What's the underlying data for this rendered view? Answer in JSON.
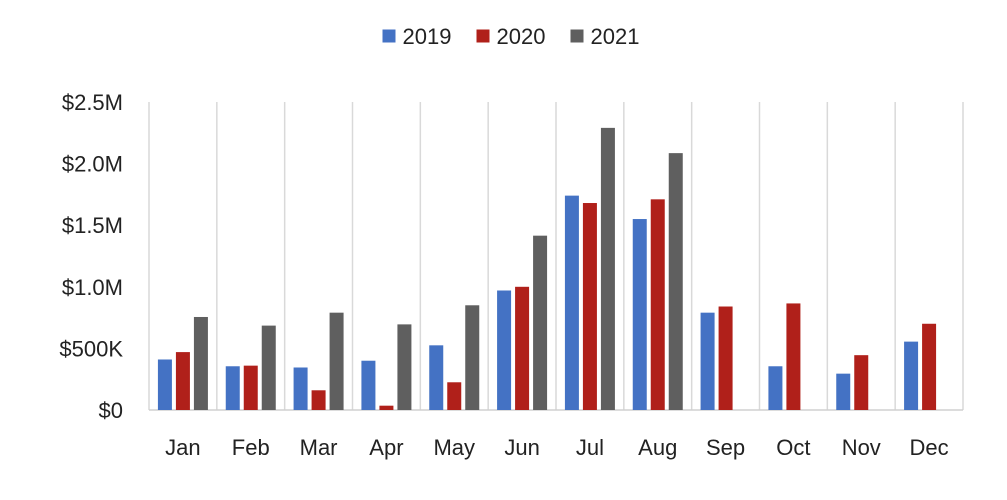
{
  "chart_data": {
    "type": "bar",
    "categories": [
      "Jan",
      "Feb",
      "Mar",
      "Apr",
      "May",
      "Jun",
      "Jul",
      "Aug",
      "Sep",
      "Oct",
      "Nov",
      "Dec"
    ],
    "series": [
      {
        "name": "2019",
        "color": "#4472C4",
        "values": [
          410000,
          355000,
          345000,
          400000,
          525000,
          970000,
          1740000,
          1550000,
          790000,
          355000,
          295000,
          555000
        ]
      },
      {
        "name": "2020",
        "color": "#B0201A",
        "values": [
          470000,
          360000,
          160000,
          35000,
          225000,
          1000000,
          1680000,
          1710000,
          840000,
          865000,
          445000,
          700000
        ]
      },
      {
        "name": "2021",
        "color": "#5F5F5F",
        "values": [
          755000,
          685000,
          790000,
          695000,
          850000,
          1415000,
          2290000,
          2085000,
          null,
          null,
          null,
          null
        ]
      }
    ],
    "ylim": [
      0,
      2500000
    ],
    "y_ticks": [
      {
        "value": 0,
        "label": "$0"
      },
      {
        "value": 500000,
        "label": "$500K"
      },
      {
        "value": 1000000,
        "label": "$1.0M"
      },
      {
        "value": 1500000,
        "label": "$1.5M"
      },
      {
        "value": 2000000,
        "label": "$2.0M"
      },
      {
        "value": 2500000,
        "label": "$2.5M"
      }
    ],
    "title": "",
    "xlabel": "",
    "ylabel": "",
    "legend_position": "top-center",
    "vertical_gridlines": true,
    "horizontal_gridlines": false
  }
}
